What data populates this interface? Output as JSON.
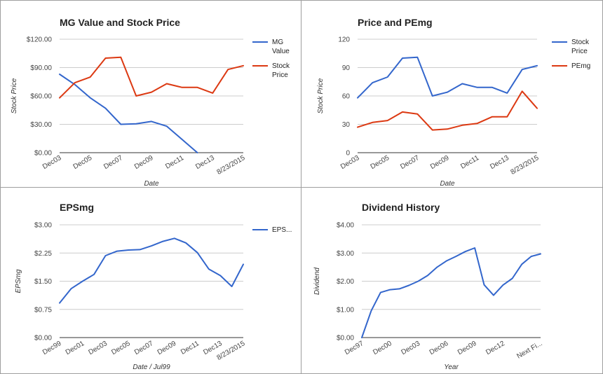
{
  "colors": {
    "blue": "#3366cc",
    "red": "#dc3912",
    "grid": "#cccccc",
    "axis": "#333333"
  },
  "chart_data": [
    {
      "type": "line",
      "title": "MG Value and Stock Price",
      "xlabel": "Date",
      "ylabel": "Stock Price",
      "ylim": [
        0,
        120
      ],
      "ytick_labels": [
        "$0.00",
        "$30.00",
        "$60.00",
        "$90.00",
        "$120.00"
      ],
      "xtick_labels": [
        "Dec03",
        "Dec05",
        "Dec07",
        "Dec09",
        "Dec11",
        "Dec13",
        "8/23/2015"
      ],
      "x": [
        "Dec03",
        "Dec04",
        "Dec05",
        "Dec06",
        "Dec07",
        "Dec08",
        "Dec09",
        "Dec10",
        "Dec11",
        "Dec12",
        "Dec13",
        "Dec14",
        "8/23/2015"
      ],
      "series": [
        {
          "name": "MG Value",
          "legend": [
            "MG",
            "Value"
          ],
          "color": "#3366cc",
          "values": [
            83,
            72,
            58,
            47,
            30,
            30.5,
            33,
            28,
            14,
            0,
            null,
            null,
            null
          ]
        },
        {
          "name": "Stock Price",
          "legend": [
            "Stock",
            "Price"
          ],
          "color": "#dc3912",
          "values": [
            58,
            74,
            80,
            100,
            101,
            60,
            64,
            73,
            69,
            69,
            63,
            88,
            92
          ]
        }
      ],
      "legend_position": "right",
      "grid": true
    },
    {
      "type": "line",
      "title": "Price and PEmg",
      "xlabel": "Date",
      "ylabel": "Stock Price",
      "ylim": [
        0,
        120
      ],
      "ytick_labels": [
        "0",
        "30",
        "60",
        "90",
        "120"
      ],
      "xtick_labels": [
        "Dec03",
        "Dec05",
        "Dec07",
        "Dec09",
        "Dec11",
        "Dec13",
        "8/23/2015"
      ],
      "x": [
        "Dec03",
        "Dec04",
        "Dec05",
        "Dec06",
        "Dec07",
        "Dec08",
        "Dec09",
        "Dec10",
        "Dec11",
        "Dec12",
        "Dec13",
        "Dec14",
        "8/23/2015"
      ],
      "series": [
        {
          "name": "Stock Price",
          "legend": [
            "Stock",
            "Price"
          ],
          "color": "#3366cc",
          "values": [
            58,
            74,
            80,
            100,
            101,
            60,
            64,
            73,
            69,
            69,
            63,
            88,
            92
          ]
        },
        {
          "name": "PEmg",
          "legend": [
            "PEmg"
          ],
          "color": "#dc3912",
          "values": [
            27,
            32,
            34,
            43,
            41,
            24,
            25,
            29,
            31,
            38,
            38,
            65,
            47
          ]
        }
      ],
      "legend_position": "right",
      "grid": true
    },
    {
      "type": "line",
      "title": "EPSmg",
      "xlabel": "Date / Jul99",
      "ylabel": "EPSmg",
      "ylim": [
        0,
        3
      ],
      "ytick_labels": [
        "$0.00",
        "$0.75",
        "$1.50",
        "$2.25",
        "$3.00"
      ],
      "xtick_labels": [
        "Dec99",
        "Dec01",
        "Dec03",
        "Dec05",
        "Dec07",
        "Dec09",
        "Dec11",
        "Dec13",
        "8/23/2015"
      ],
      "x": [
        "Dec99",
        "Dec00",
        "Dec01",
        "Dec02",
        "Dec03",
        "Dec04",
        "Dec05",
        "Dec06",
        "Dec07",
        "Dec08",
        "Dec09",
        "Dec10",
        "Dec11",
        "Dec12",
        "Dec13",
        "Dec14",
        "8/23/2015"
      ],
      "series": [
        {
          "name": "EPS...",
          "legend": [
            "EPS..."
          ],
          "color": "#3366cc",
          "values": [
            0.92,
            1.3,
            1.5,
            1.68,
            2.18,
            2.3,
            2.33,
            2.34,
            2.44,
            2.56,
            2.64,
            2.52,
            2.26,
            1.82,
            1.65,
            1.36,
            1.95
          ]
        }
      ],
      "legend_position": "right",
      "grid": true
    },
    {
      "type": "line",
      "title": "Dividend History",
      "xlabel": "Year",
      "ylabel": "Dividend",
      "ylim": [
        0,
        4
      ],
      "ytick_labels": [
        "$0.00",
        "$1.00",
        "$2.00",
        "$3.00",
        "$4.00"
      ],
      "xtick_labels": [
        "Dec97",
        "Dec00",
        "Dec03",
        "Dec06",
        "Dec09",
        "Dec12",
        "Next Fi..."
      ],
      "x": [
        "Dec97",
        "Dec98",
        "Dec99",
        "Dec00",
        "Dec01",
        "Dec02",
        "Dec03",
        "Dec04",
        "Dec05",
        "Dec06",
        "Dec07",
        "Dec08",
        "Dec09",
        "Dec10",
        "Dec11",
        "Dec12",
        "Dec13",
        "Dec14",
        "Dec15",
        "Next Fi..."
      ],
      "series": [
        {
          "name": "Dividend",
          "color": "#3366cc",
          "values": [
            0.0,
            0.95,
            1.6,
            1.7,
            1.73,
            1.85,
            2.0,
            2.2,
            2.5,
            2.72,
            2.88,
            3.05,
            3.18,
            1.87,
            1.5,
            1.86,
            2.1,
            2.6,
            2.88,
            2.97
          ]
        }
      ],
      "legend_position": "none",
      "grid": true
    }
  ]
}
